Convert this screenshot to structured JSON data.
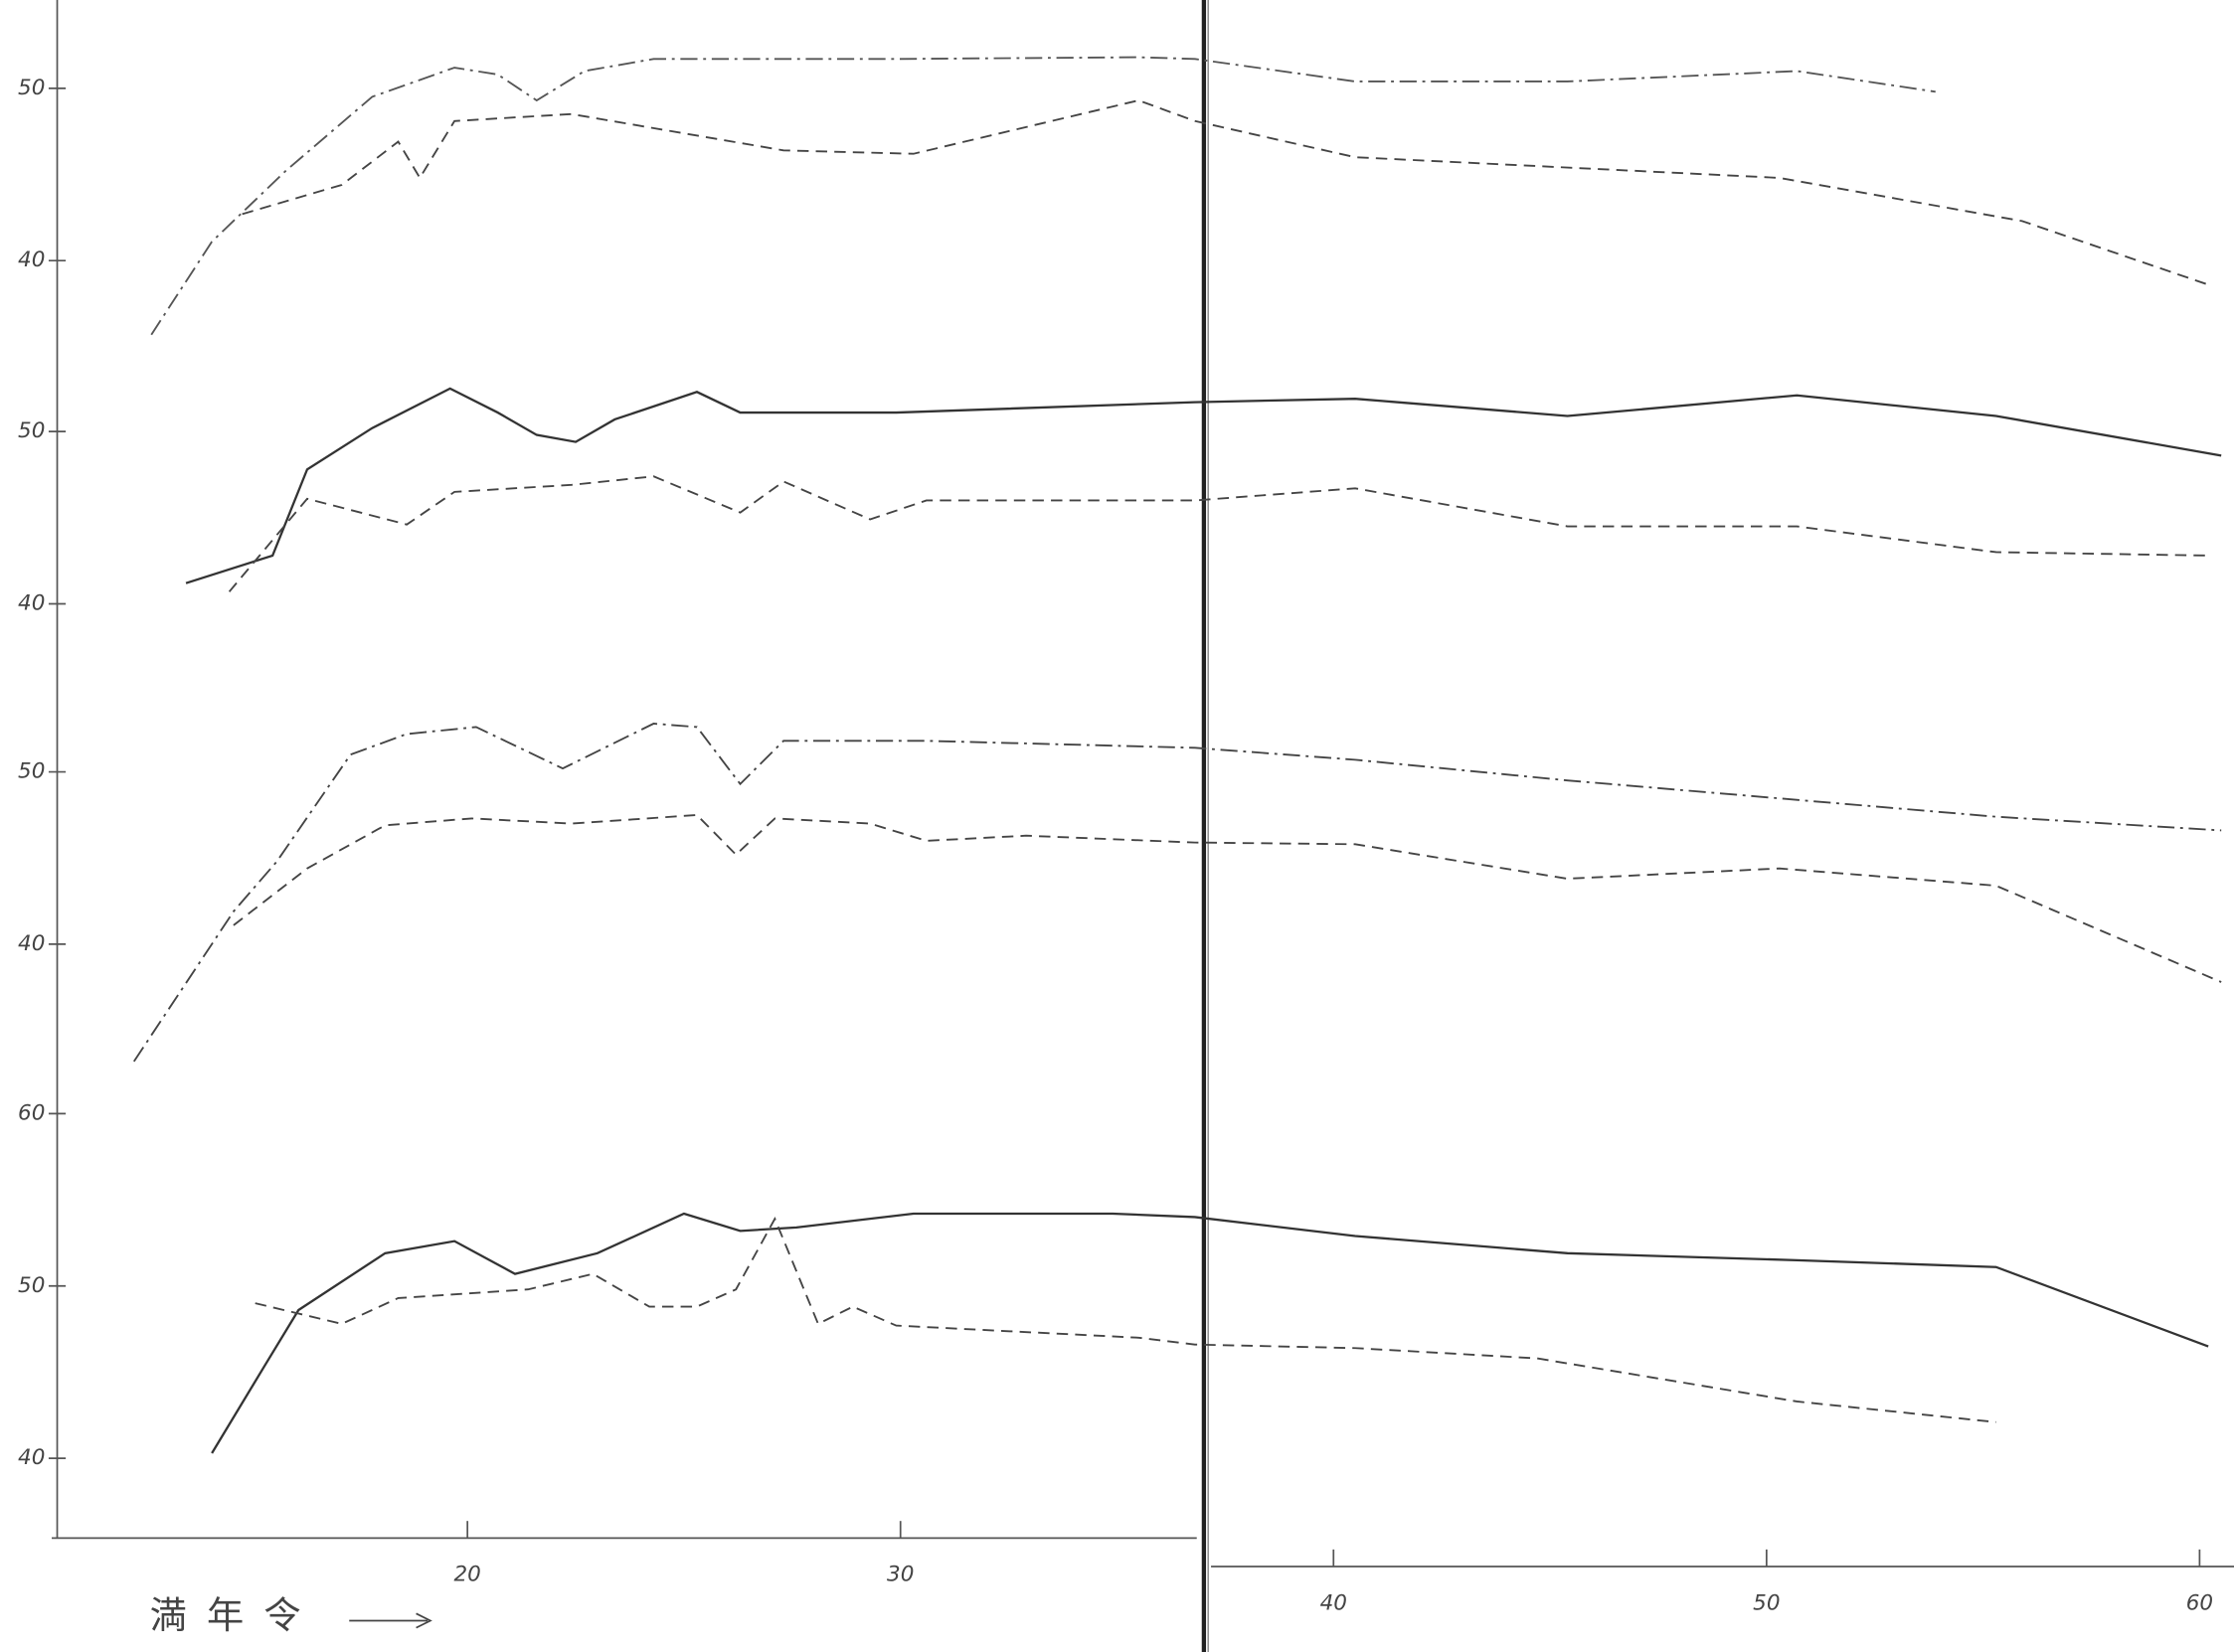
{
  "chart_data": [
    {
      "type": "line",
      "ylim": [
        35,
        55
      ],
      "yticks": [
        40,
        50
      ],
      "series": [
        {
          "color": "#555",
          "dash": "dashdot",
          "x": [
            12.7,
            14.1,
            15.8,
            17.8,
            19.7,
            20.7,
            21.6,
            22.7,
            24.3,
            29.9,
            35.5,
            36.8,
            40.5,
            45.4,
            50.7,
            53.9
          ],
          "values": [
            35.7,
            41.1,
            45.2,
            49.5,
            51.2,
            50.8,
            49.3,
            51.0,
            51.7,
            51.7,
            51.8,
            51.7,
            50.4,
            50.4,
            51.0,
            49.8
          ]
        },
        {
          "color": "#444",
          "dash": "dashed",
          "x": [
            14.8,
            17.1,
            18.4,
            18.9,
            19.7,
            22.4,
            27.3,
            30.3,
            35.5,
            36.8,
            40.5,
            50.3,
            55.9,
            60.2
          ],
          "values": [
            42.7,
            44.4,
            46.9,
            44.8,
            48.1,
            48.5,
            46.4,
            46.2,
            49.3,
            48.1,
            46.0,
            44.8,
            42.3,
            38.6
          ]
        }
      ]
    },
    {
      "type": "line",
      "ylim": [
        35,
        55
      ],
      "yticks": [
        40,
        50
      ],
      "series": [
        {
          "color": "#333",
          "dash": "solid",
          "x": [
            13.5,
            15.5,
            16.3,
            17.8,
            19.6,
            20.7,
            21.6,
            22.5,
            23.4,
            25.3,
            26.3,
            29.9,
            36.8,
            40.5,
            45.4,
            50.7,
            55.3,
            60.5
          ],
          "values": [
            41.2,
            42.8,
            47.8,
            50.2,
            52.5,
            51.1,
            49.8,
            49.4,
            50.7,
            52.3,
            51.1,
            51.1,
            51.7,
            51.9,
            50.9,
            52.1,
            50.9,
            48.6
          ]
        },
        {
          "color": "#444",
          "dash": "dashed",
          "x": [
            14.5,
            16.3,
            18.6,
            19.7,
            22.4,
            24.3,
            26.3,
            27.3,
            29.3,
            30.6,
            36.8,
            40.5,
            45.4,
            50.7,
            55.3,
            60.2
          ],
          "values": [
            40.7,
            46.1,
            44.6,
            46.5,
            46.9,
            47.4,
            45.3,
            47.1,
            44.9,
            46.0,
            46.0,
            46.7,
            44.5,
            44.5,
            43.0,
            42.8
          ]
        }
      ]
    },
    {
      "type": "line",
      "ylim": [
        33,
        55
      ],
      "yticks": [
        40,
        50
      ],
      "series": [
        {
          "color": "#444",
          "dash": "dashdot",
          "x": [
            12.3,
            14.6,
            15.6,
            17.3,
            18.6,
            20.2,
            22.2,
            24.3,
            25.3,
            26.3,
            27.3,
            30.6,
            36.8,
            40.5,
            45.4,
            55.3,
            60.5
          ],
          "values": [
            33.2,
            41.9,
            44.8,
            51.0,
            52.2,
            52.6,
            50.2,
            52.8,
            52.6,
            49.3,
            51.8,
            51.8,
            51.4,
            50.7,
            49.5,
            47.4,
            46.6
          ]
        },
        {
          "color": "#444",
          "dash": "dashed",
          "x": [
            14.6,
            16.3,
            18.1,
            20.1,
            22.4,
            25.3,
            26.2,
            27.1,
            29.3,
            30.6,
            32.9,
            36.8,
            40.5,
            45.4,
            50.3,
            55.3,
            60.5
          ],
          "values": [
            41.1,
            44.4,
            46.9,
            47.3,
            47.0,
            47.5,
            45.2,
            47.3,
            47.0,
            46.0,
            46.3,
            45.9,
            45.8,
            43.8,
            44.4,
            43.4,
            37.8
          ]
        }
      ]
    },
    {
      "type": "line",
      "ylim": [
        35,
        65
      ],
      "yticks": [
        40,
        50,
        60
      ],
      "xlim": [
        10.4,
        61
      ],
      "xticks": [
        20,
        30,
        40,
        50,
        60
      ],
      "xlabel": "満年令",
      "series": [
        {
          "color": "#333",
          "dash": "solid",
          "x": [
            14.1,
            15.3,
            16.1,
            18.1,
            19.7,
            21.1,
            23.0,
            25.0,
            26.3,
            27.6,
            30.3,
            34.9,
            36.8,
            40.5,
            45.4,
            50.7,
            55.3,
            60.2
          ],
          "values": [
            40.3,
            45.3,
            48.6,
            51.9,
            52.6,
            50.7,
            51.9,
            54.2,
            53.2,
            53.4,
            54.2,
            54.2,
            54.0,
            52.9,
            51.9,
            51.5,
            51.1,
            46.5
          ]
        },
        {
          "color": "#444",
          "dash": "dashed",
          "x": [
            15.1,
            17.1,
            18.4,
            21.4,
            22.9,
            24.2,
            25.3,
            26.2,
            27.1,
            28.1,
            28.9,
            29.9,
            35.5,
            36.8,
            40.5,
            44.7,
            50.7,
            55.3
          ],
          "values": [
            49.0,
            47.8,
            49.3,
            49.8,
            50.7,
            48.8,
            48.8,
            49.8,
            53.9,
            47.8,
            48.8,
            47.7,
            47.0,
            46.6,
            46.4,
            45.8,
            43.3,
            42.1
          ]
        }
      ]
    }
  ]
}
